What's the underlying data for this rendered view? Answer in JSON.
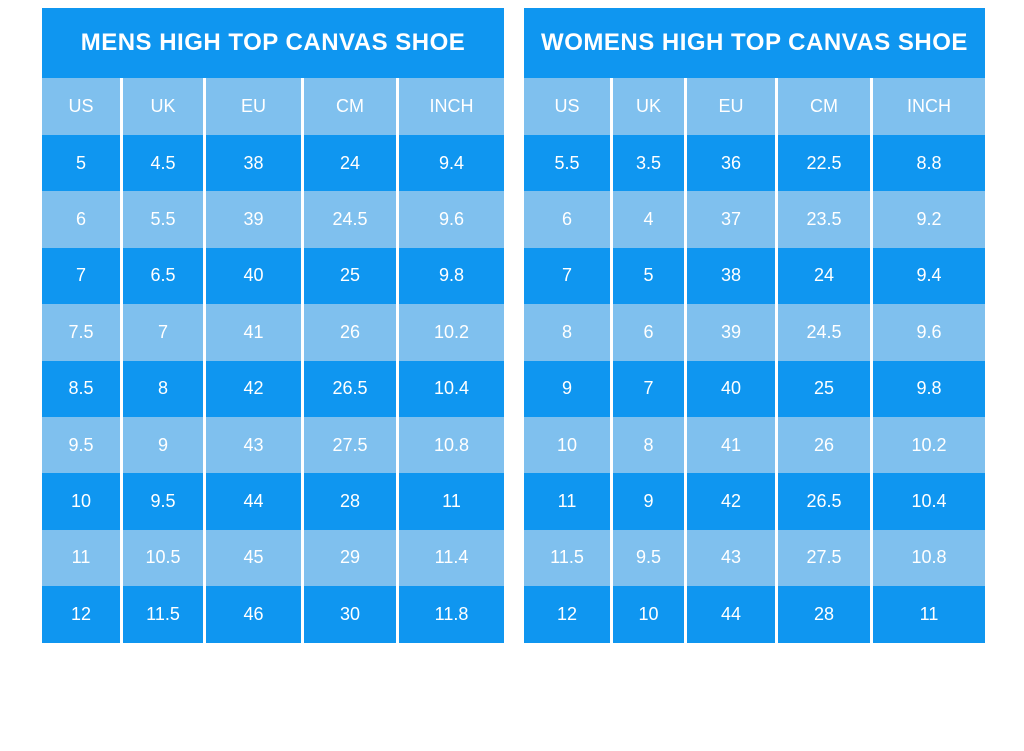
{
  "colors": {
    "table_blue": "#0f96f0",
    "table_light_blue": "#7fc0ee",
    "text_white": "#ffffff",
    "page_background": "#ffffff"
  },
  "chart_data": [
    {
      "type": "table",
      "title": "MENS HIGH TOP CANVAS SHOE",
      "columns": [
        "US",
        "UK",
        "EU",
        "CM",
        "INCH"
      ],
      "rows": [
        [
          "5",
          "4.5",
          "38",
          "24",
          "9.4"
        ],
        [
          "6",
          "5.5",
          "39",
          "24.5",
          "9.6"
        ],
        [
          "7",
          "6.5",
          "40",
          "25",
          "9.8"
        ],
        [
          "7.5",
          "7",
          "41",
          "26",
          "10.2"
        ],
        [
          "8.5",
          "8",
          "42",
          "26.5",
          "10.4"
        ],
        [
          "9.5",
          "9",
          "43",
          "27.5",
          "10.8"
        ],
        [
          "10",
          "9.5",
          "44",
          "28",
          "11"
        ],
        [
          "11",
          "10.5",
          "45",
          "29",
          "11.4"
        ],
        [
          "12",
          "11.5",
          "46",
          "30",
          "11.8"
        ]
      ]
    },
    {
      "type": "table",
      "title": "WOMENS HIGH TOP CANVAS SHOE",
      "columns": [
        "US",
        "UK",
        "EU",
        "CM",
        "INCH"
      ],
      "rows": [
        [
          "5.5",
          "3.5",
          "36",
          "22.5",
          "8.8"
        ],
        [
          "6",
          "4",
          "37",
          "23.5",
          "9.2"
        ],
        [
          "7",
          "5",
          "38",
          "24",
          "9.4"
        ],
        [
          "8",
          "6",
          "39",
          "24.5",
          "9.6"
        ],
        [
          "9",
          "7",
          "40",
          "25",
          "9.8"
        ],
        [
          "10",
          "8",
          "41",
          "26",
          "10.2"
        ],
        [
          "11",
          "9",
          "42",
          "26.5",
          "10.4"
        ],
        [
          "11.5",
          "9.5",
          "43",
          "27.5",
          "10.8"
        ],
        [
          "12",
          "10",
          "44",
          "28",
          "11"
        ]
      ]
    }
  ]
}
